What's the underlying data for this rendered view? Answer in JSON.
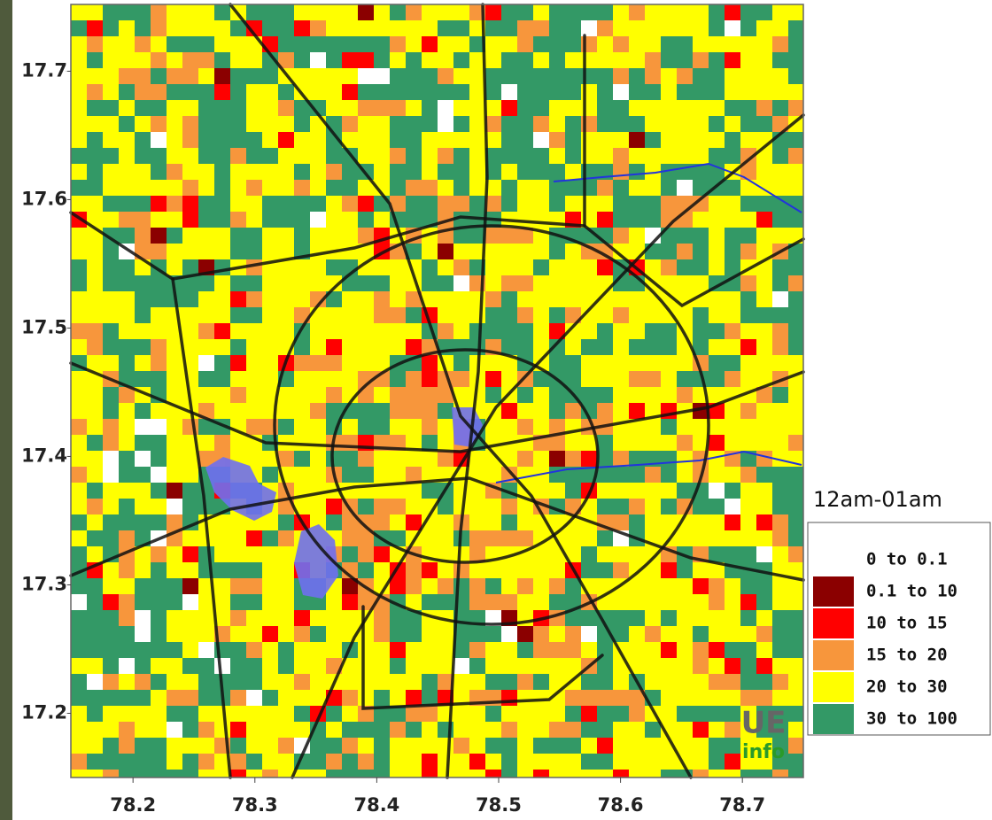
{
  "map": {
    "xlim": [
      78.149,
      78.75
    ],
    "ylim": [
      17.15,
      17.752
    ],
    "xticks": [
      78.2,
      78.3,
      78.4,
      78.5,
      78.6,
      78.7
    ],
    "yticks": [
      17.2,
      17.3,
      17.4,
      17.5,
      17.6,
      17.7
    ],
    "legend": {
      "title": "12am-01am",
      "items": [
        {
          "label": "0 to 0.1",
          "color": "#ffffff"
        },
        {
          "label": "0.1 to 10",
          "color": "#8b0000"
        },
        {
          "label": "10 to 15",
          "color": "#ff0000"
        },
        {
          "label": "15 to 20",
          "color": "#f7963c"
        },
        {
          "label": "20 to 30",
          "color": "#ffff00"
        },
        {
          "label": "30 to 100",
          "color": "#339966"
        }
      ]
    },
    "logo": {
      "line1": "UE",
      "line2": "info"
    }
  }
}
